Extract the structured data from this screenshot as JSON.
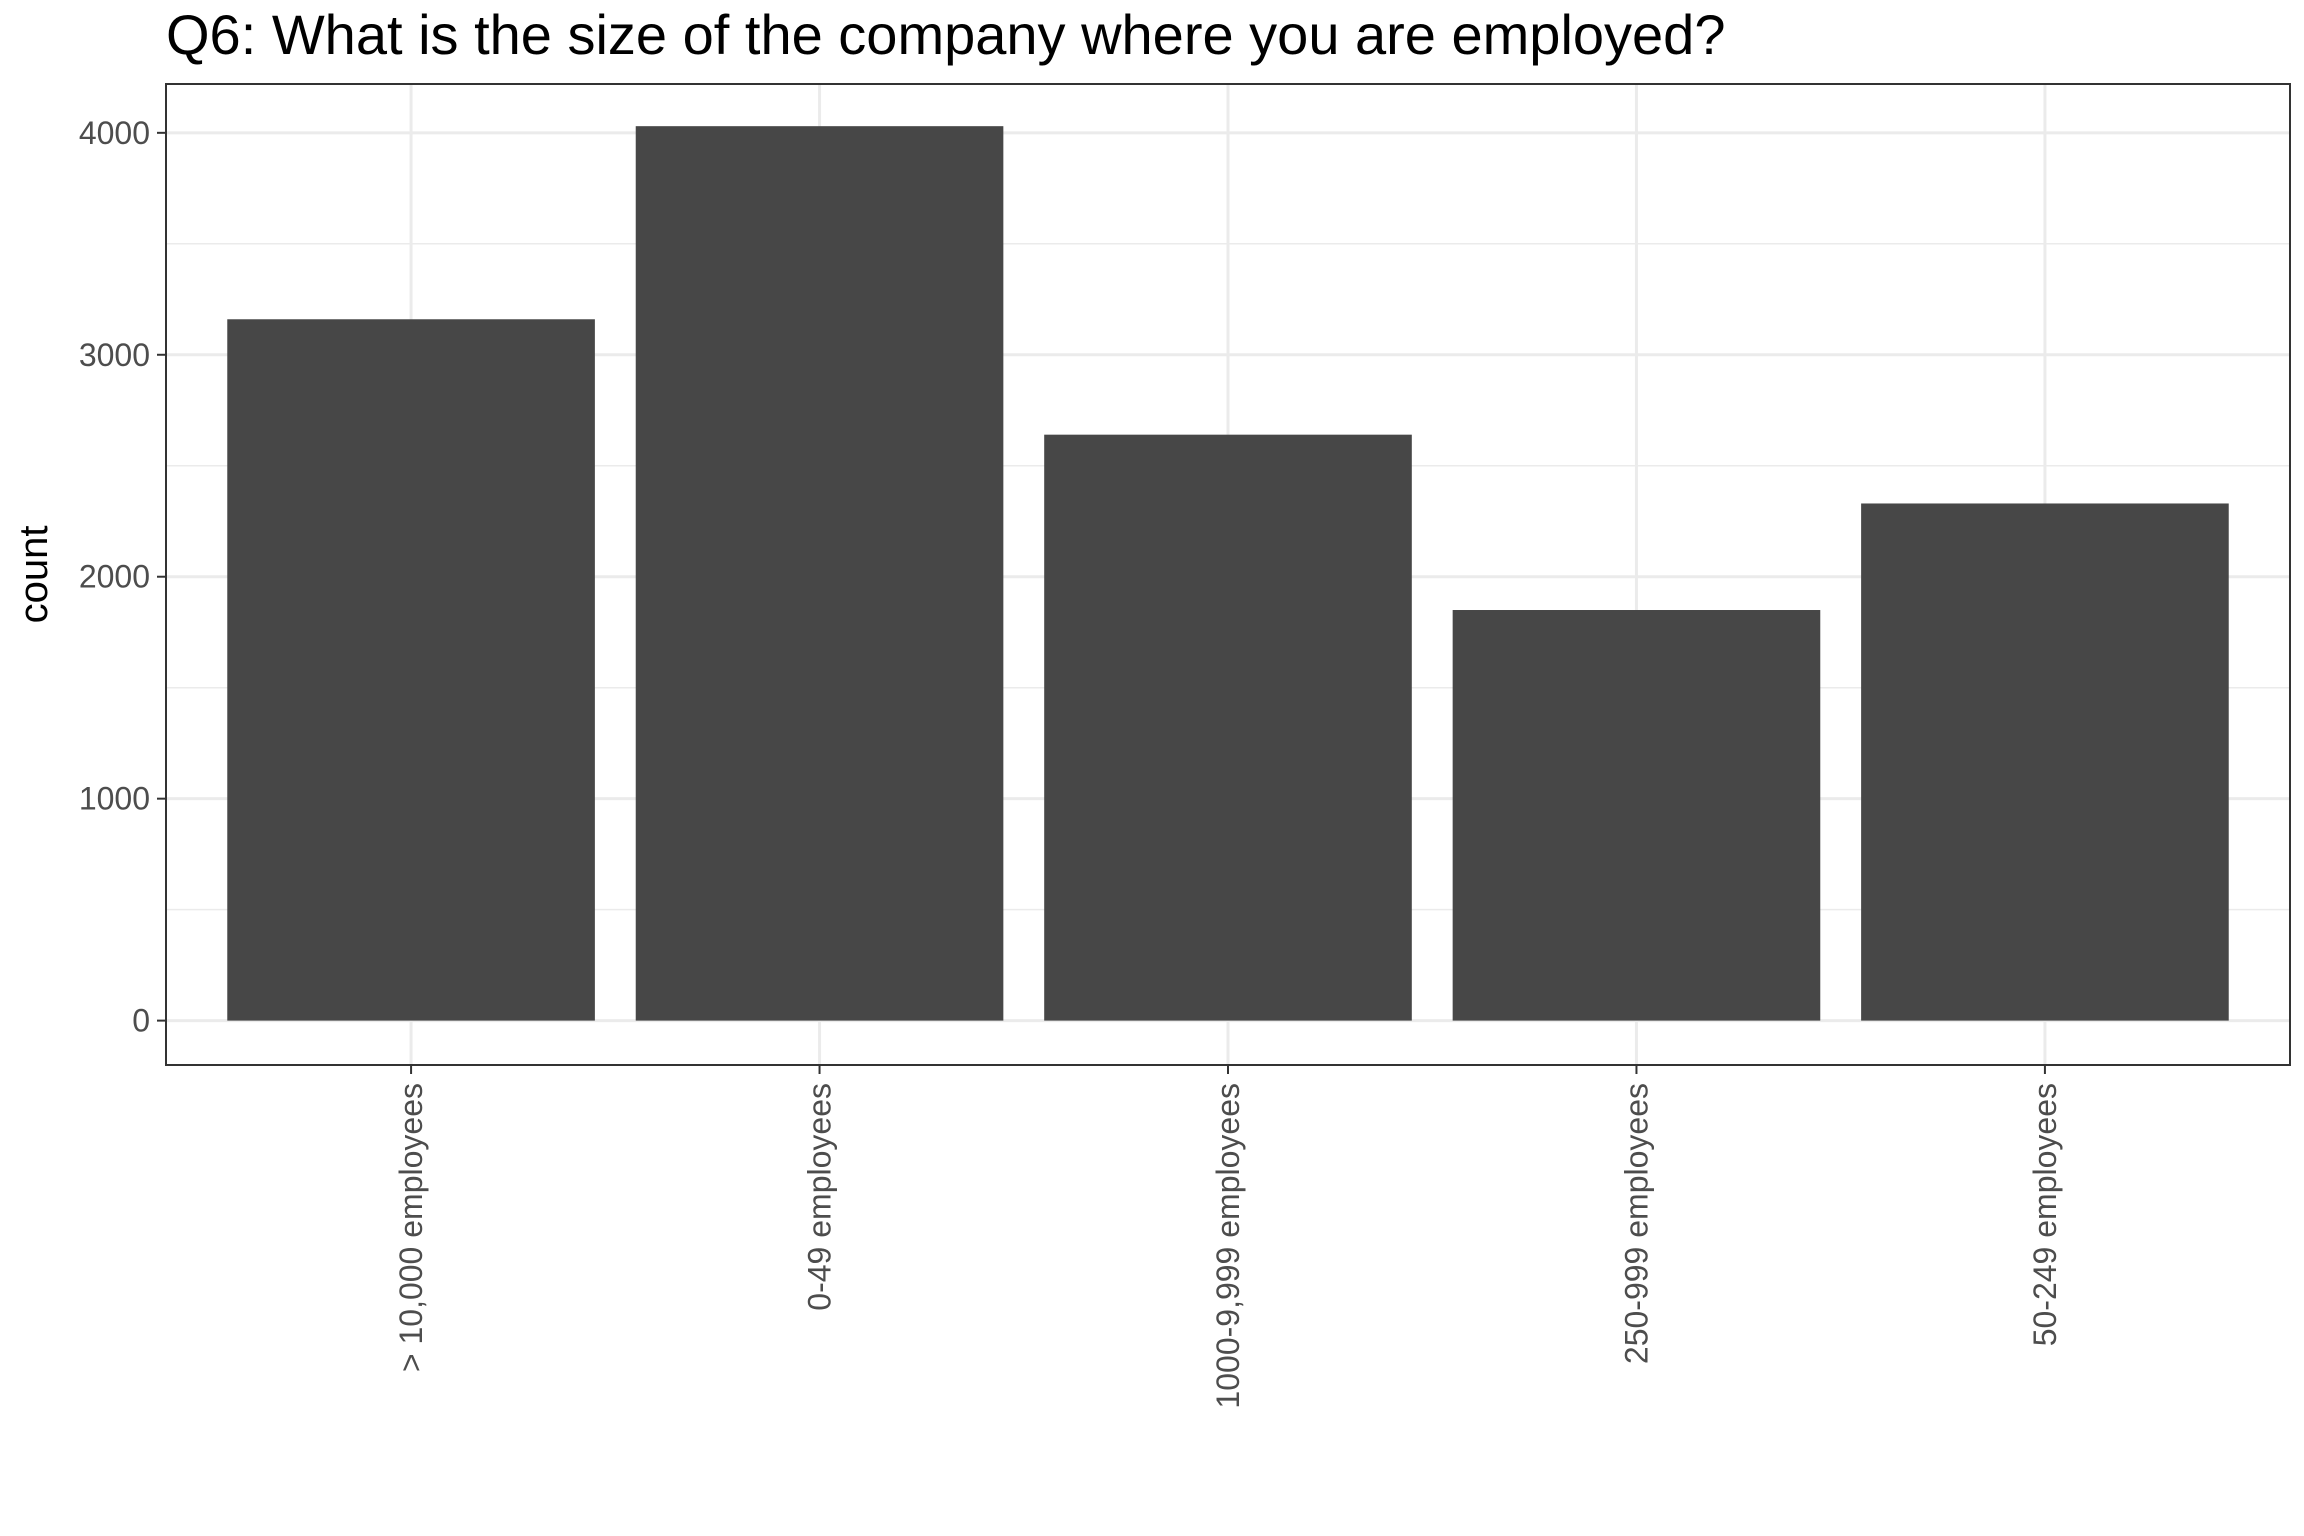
{
  "chart_data": {
    "type": "bar",
    "title": "Q6: What is the size of the company where you are employed?",
    "xlabel": "",
    "ylabel": "count",
    "categories": [
      "> 10,000 employees",
      "0-49 employees",
      "1000-9,999 employees",
      "250-999 employees",
      "50-249 employees"
    ],
    "values": [
      3160,
      4030,
      2640,
      1850,
      2330
    ],
    "ylim": [
      -200,
      4220
    ],
    "yticks": [
      0,
      1000,
      2000,
      3000,
      4000
    ],
    "grid": true,
    "bar_color": "#474747",
    "grid_color": "#ebebeb",
    "panel_border_color": "#333333"
  }
}
